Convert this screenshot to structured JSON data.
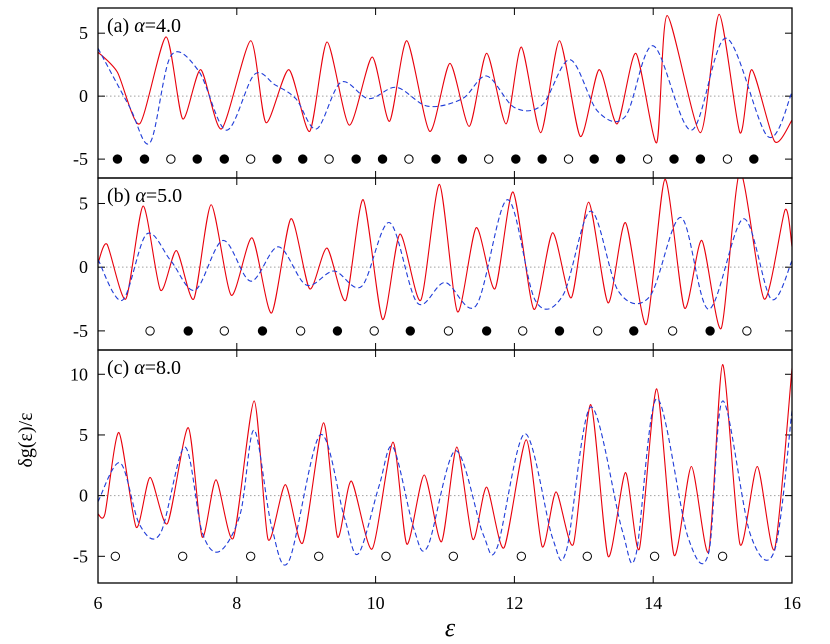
{
  "chart_data": [
    {
      "type": "line",
      "panel_label": "(b) α=5.0",
      "panel_prefix": "(b) ",
      "alpha_symbol": "α",
      "alpha_value": "=5.0",
      "xlim": [
        6,
        16
      ],
      "ylim": [
        -6.5,
        7
      ],
      "yticks": [
        -5,
        0,
        5
      ],
      "xticks": [
        6,
        8,
        10,
        12,
        14,
        16
      ],
      "zero_line": true,
      "series": [
        {
          "color": "#e8000b",
          "style": "solid",
          "peaks": [
            6.13,
            6.65,
            7.13,
            7.63,
            8.22,
            8.78,
            9.3,
            9.82,
            10.35,
            10.92,
            11.45,
            11.98,
            12.55,
            13.07,
            13.6,
            14.17,
            14.7,
            15.25,
            15.9
          ],
          "peak_values": [
            1.8,
            4.8,
            1.3,
            4.9,
            2.3,
            3.8,
            1.5,
            5.3,
            2.6,
            6.5,
            3.1,
            5.9,
            2.7,
            5.1,
            3.5,
            6.9,
            2.1,
            7.5,
            4.5
          ],
          "valleys": [
            6.4,
            6.9,
            7.38,
            7.92,
            8.5,
            9.05,
            9.57,
            10.1,
            10.65,
            11.18,
            11.72,
            12.28,
            12.82,
            13.35,
            13.9,
            14.45,
            14.98,
            15.6
          ],
          "valley_values": [
            -2.5,
            -1.8,
            -2.5,
            -2.2,
            -3.6,
            -1.7,
            -2.6,
            -4.1,
            -2.6,
            -3.5,
            -1.7,
            -3.3,
            -2.4,
            -2.8,
            -4.5,
            -3.2,
            -4.8,
            -2.5
          ],
          "start_value": 0.3,
          "end_value": 1.6
        },
        {
          "color": "#1f3cd8",
          "style": "dashed",
          "x": [
            6,
            6.35,
            6.7,
            7.05,
            7.4,
            7.8,
            8.2,
            8.6,
            9.0,
            9.4,
            9.8,
            10.2,
            10.6,
            11.0,
            11.45,
            11.9,
            12.3,
            12.7,
            13.1,
            13.5,
            13.95,
            14.4,
            14.8,
            15.3,
            15.7,
            16
          ],
          "y": [
            0.6,
            -2.6,
            2.6,
            0.5,
            -1.8,
            2.1,
            -1.1,
            1.6,
            -1.4,
            -0.3,
            -1.5,
            3.5,
            -2.8,
            -1.2,
            -3.0,
            5.3,
            -2.6,
            -2.2,
            4.4,
            -1.9,
            -2.3,
            3.9,
            -3.3,
            3.8,
            -2.5,
            0.5
          ]
        }
      ],
      "markers": {
        "y": -5,
        "x": [
          6.75,
          7.3,
          7.82,
          8.37,
          8.92,
          9.45,
          9.98,
          10.5,
          11.05,
          11.6,
          12.12,
          12.65,
          13.2,
          13.72,
          14.28,
          14.82,
          15.35
        ],
        "filled": [
          false,
          true,
          false,
          true,
          false,
          true,
          false,
          true,
          false,
          true,
          false,
          true,
          false,
          true,
          false,
          true,
          false
        ]
      }
    },
    {
      "type": "line",
      "panel_label": "(a) α=4.0",
      "panel_prefix": "(a) ",
      "alpha_symbol": "α",
      "alpha_value": "=4.0",
      "xlim": [
        6,
        16
      ],
      "ylim": [
        -6.5,
        7
      ],
      "yticks": [
        -5,
        0,
        5
      ],
      "xticks": [
        6,
        8,
        10,
        12,
        14,
        16
      ],
      "zero_line": true,
      "series": [
        {
          "color": "#e8000b",
          "style": "solid",
          "peaks": [
            6.28,
            6.98,
            7.48,
            8.2,
            8.75,
            9.3,
            9.95,
            10.45,
            11.07,
            11.6,
            12.1,
            12.65,
            13.22,
            13.75,
            14.2,
            14.95,
            15.42
          ],
          "peak_values": [
            1.9,
            4.7,
            2.1,
            4.4,
            2.1,
            4.3,
            3.1,
            4.4,
            2.6,
            3.4,
            3.9,
            4.4,
            2.1,
            3.4,
            6.4,
            6.5,
            2.1
          ],
          "valleys": [
            6.6,
            7.22,
            7.78,
            8.42,
            9.05,
            9.62,
            10.2,
            10.78,
            11.35,
            11.88,
            12.38,
            12.95,
            13.48,
            14.05,
            14.68,
            15.25,
            15.75
          ],
          "valley_values": [
            -2.2,
            -1.8,
            -2.6,
            -2.1,
            -2.8,
            -2.3,
            -2.0,
            -2.8,
            -2.4,
            -2.2,
            -2.9,
            -3.2,
            -2.2,
            -3.7,
            -2.9,
            -2.9,
            -3.6
          ],
          "start_value": 3.5,
          "end_value": -1.9
        },
        {
          "color": "#1f3cd8",
          "style": "dashed",
          "x": [
            6,
            6.45,
            6.75,
            7.05,
            7.45,
            7.85,
            8.25,
            8.55,
            8.85,
            9.15,
            9.5,
            9.9,
            10.3,
            10.75,
            11.25,
            11.6,
            12.0,
            12.4,
            12.8,
            13.2,
            13.6,
            14.0,
            14.55,
            15.05,
            15.65,
            16
          ],
          "y": [
            3.8,
            -0.8,
            -3.7,
            3.2,
            2.0,
            -2.7,
            1.7,
            0.9,
            -0.2,
            -2.6,
            1.1,
            -0.2,
            0.7,
            -0.8,
            -0.2,
            1.6,
            -0.9,
            -0.7,
            2.9,
            -1.2,
            -1.6,
            4.0,
            -2.7,
            4.6,
            -3.2,
            0.3
          ]
        }
      ],
      "markers": {
        "y": -5,
        "x": [
          6.28,
          6.67,
          7.05,
          7.43,
          7.82,
          8.2,
          8.58,
          8.95,
          9.33,
          9.72,
          10.1,
          10.48,
          10.87,
          11.25,
          11.63,
          12.02,
          12.4,
          12.78,
          13.15,
          13.53,
          13.92,
          14.3,
          14.68,
          15.07,
          15.45
        ],
        "filled": [
          true,
          true,
          false,
          true,
          true,
          false,
          true,
          true,
          false,
          true,
          true,
          false,
          true,
          true,
          false,
          true,
          true,
          false,
          true,
          true,
          false,
          true,
          true,
          false,
          true
        ]
      }
    },
    {
      "type": "line",
      "panel_label": "(c) α=8.0",
      "panel_prefix": "(c) ",
      "alpha_symbol": "α",
      "alpha_value": "=8.0",
      "xlim": [
        6,
        16
      ],
      "ylim": [
        -7.2,
        12
      ],
      "yticks": [
        -5,
        0,
        5,
        10
      ],
      "xticks": [
        6,
        8,
        10,
        12,
        14,
        16
      ],
      "zero_line": true,
      "ylabel": "δg(ε)/ε",
      "xlabel": "ε",
      "series": [
        {
          "color": "#e8000b",
          "style": "solid",
          "peaks": [
            6.3,
            6.75,
            7.3,
            7.7,
            8.25,
            8.7,
            9.25,
            9.65,
            10.25,
            10.7,
            11.17,
            11.6,
            12.17,
            12.6,
            13.1,
            13.6,
            14.05,
            14.55,
            15.0,
            15.5,
            16.0
          ],
          "peak_values": [
            5.2,
            1.5,
            5.6,
            1.3,
            7.8,
            0.9,
            6.0,
            1.2,
            4.4,
            1.7,
            4.0,
            0.7,
            4.6,
            0.3,
            7.5,
            1.9,
            8.8,
            2.4,
            10.8,
            2.4,
            10.5
          ],
          "valleys": [
            6.1,
            6.55,
            7.0,
            7.5,
            7.95,
            8.45,
            8.95,
            9.45,
            9.95,
            10.45,
            10.95,
            11.4,
            11.85,
            12.4,
            12.85,
            13.35,
            13.8,
            14.3,
            14.8,
            15.25,
            15.75
          ],
          "valley_values": [
            -1.5,
            -2.6,
            -2.3,
            -3.4,
            -3.5,
            -3.6,
            -3.9,
            -3.4,
            -4.4,
            -4.0,
            -3.8,
            -3.6,
            -4.3,
            -4.2,
            -4.0,
            -5.0,
            -4.4,
            -4.9,
            -4.6,
            -4.0,
            -4.4
          ],
          "start_value": -1.5,
          "end_value": 10.5
        },
        {
          "color": "#1f3cd8",
          "style": "dashed",
          "x": [
            6,
            6.32,
            6.6,
            6.9,
            7.25,
            7.5,
            7.75,
            8.05,
            8.25,
            8.5,
            8.75,
            9.2,
            9.55,
            9.75,
            10.05,
            10.25,
            10.55,
            10.75,
            11.15,
            11.55,
            11.75,
            12.15,
            12.55,
            12.75,
            13.1,
            13.55,
            13.75,
            14.05,
            14.5,
            14.8,
            15.0,
            15.4,
            15.75,
            16
          ],
          "y": [
            -0.5,
            2.7,
            -2.4,
            -3.1,
            4.0,
            -3.0,
            -4.6,
            -1.5,
            5.4,
            -2.5,
            -5.4,
            5.0,
            -1.8,
            -4.8,
            0.8,
            4.0,
            -2.7,
            -4.2,
            3.7,
            -3.2,
            -4.3,
            5.1,
            -3.5,
            -4.5,
            7.3,
            -2.8,
            -4.9,
            8.0,
            -3.4,
            -4.7,
            7.8,
            -3.2,
            -4.5,
            7.0
          ]
        }
      ],
      "markers": {
        "y": -5,
        "x": [
          6.25,
          7.22,
          8.2,
          9.18,
          10.15,
          11.12,
          12.1,
          13.05,
          14.02,
          15.0
        ],
        "filled": [
          false,
          false,
          false,
          false,
          false,
          false,
          false,
          false,
          false,
          false
        ]
      }
    }
  ]
}
